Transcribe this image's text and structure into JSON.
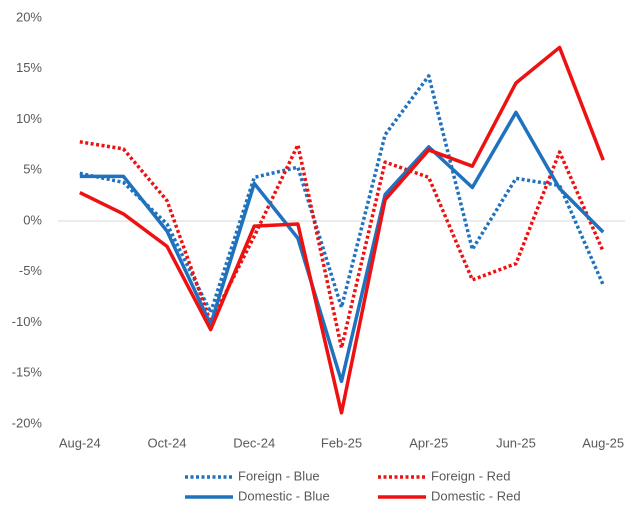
{
  "chart_data": {
    "type": "line",
    "categories": [
      "Aug-24",
      null,
      "Oct-24",
      null,
      "Dec-24",
      null,
      "Feb-25",
      null,
      "Apr-25",
      null,
      "Jun-25",
      null,
      "Aug-25"
    ],
    "series": [
      {
        "name": "Foreign - Blue",
        "color": "#1f72be",
        "dash": "dotted",
        "values": [
          4.7,
          3.8,
          -0.3,
          -9,
          4.3,
          5.3,
          -8.5,
          8.5,
          14.3,
          -2.8,
          4.2,
          3.5,
          -6.3
        ]
      },
      {
        "name": "Foreign - Red",
        "color": "#ee1111",
        "dash": "dotted",
        "values": [
          7.8,
          7.1,
          2,
          -10,
          -1.5,
          7.5,
          -12.5,
          5.8,
          4.3,
          -5.8,
          -4.2,
          6.8,
          -3
        ]
      },
      {
        "name": "Domestic - Blue",
        "color": "#1f72be",
        "dash": "solid",
        "values": [
          4.4,
          4.4,
          -1,
          -10.2,
          3.7,
          -1.7,
          -15.8,
          2.6,
          7.3,
          3.3,
          10.7,
          3.2,
          -1.1
        ]
      },
      {
        "name": "Domestic - Red",
        "color": "#ee1111",
        "dash": "solid",
        "values": [
          2.8,
          0.7,
          -2.5,
          -10.7,
          -0.5,
          -0.3,
          -18.9,
          2.1,
          7,
          5.4,
          13.6,
          17.1,
          6
        ]
      }
    ],
    "ylim": [
      -20,
      20
    ],
    "yticks": [
      {
        "value": -20,
        "label": "-20%"
      },
      {
        "value": -15,
        "label": "-15%"
      },
      {
        "value": -10,
        "label": "-10%"
      },
      {
        "value": -5,
        "label": "-5%"
      },
      {
        "value": 0,
        "label": "0%"
      },
      {
        "value": 5,
        "label": "5%"
      },
      {
        "value": 10,
        "label": "10%"
      },
      {
        "value": 15,
        "label": "15%"
      },
      {
        "value": 20,
        "label": "20%"
      }
    ],
    "grid": false,
    "legend": "bottom"
  }
}
